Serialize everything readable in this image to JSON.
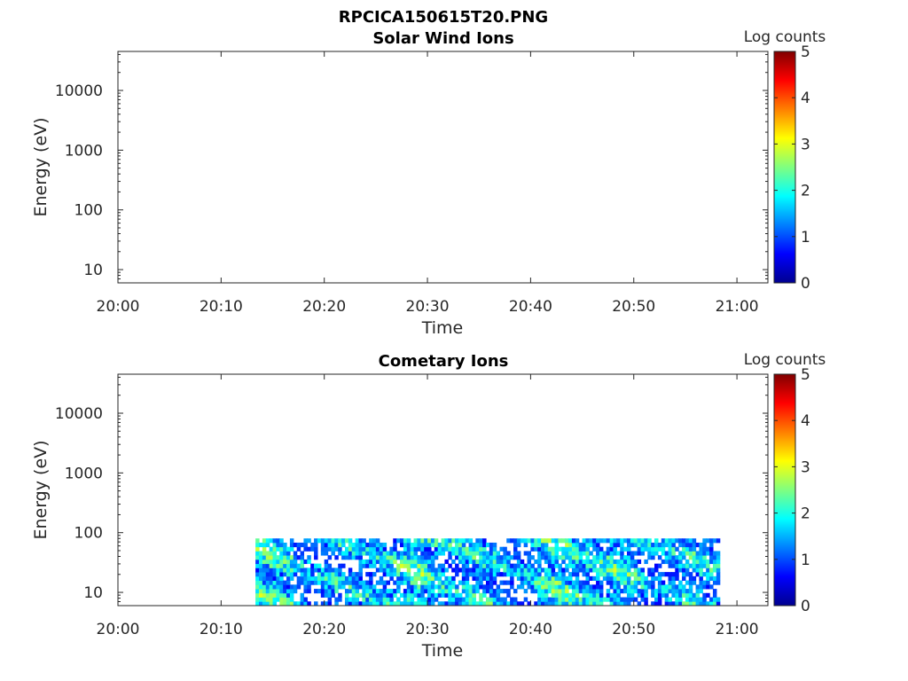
{
  "title": "RPCICA150615T20.PNG",
  "colorbar_label": "Log counts",
  "colorbar_ticks": [
    "0",
    "1",
    "2",
    "3",
    "4",
    "5"
  ],
  "chart_data": [
    {
      "type": "heatmap",
      "title": "Solar Wind Ions",
      "xlabel": "Time",
      "ylabel": "Energy (eV)",
      "x_ticks": [
        "20:00",
        "20:10",
        "20:20",
        "20:30",
        "20:40",
        "20:50",
        "21:00"
      ],
      "y_ticks": [
        "10",
        "100",
        "1000",
        "10000"
      ],
      "y_scale": "log",
      "ylim": [
        6,
        45000
      ],
      "xlim": [
        "20:00",
        "21:03"
      ],
      "clim": [
        0,
        5
      ],
      "data_extent": null
    },
    {
      "type": "heatmap",
      "title": "Cometary Ions",
      "xlabel": "Time",
      "ylabel": "Energy (eV)",
      "x_ticks": [
        "20:00",
        "20:10",
        "20:20",
        "20:30",
        "20:40",
        "20:50",
        "21:00"
      ],
      "y_ticks": [
        "10",
        "100",
        "1000",
        "10000"
      ],
      "y_scale": "log",
      "ylim": [
        6,
        45000
      ],
      "xlim": [
        "20:00",
        "21:03"
      ],
      "clim": [
        0,
        5
      ],
      "data_extent": {
        "time_start": "20:13:20",
        "time_end": "20:58:20",
        "energy_min": 6,
        "energy_max": 80
      }
    }
  ]
}
